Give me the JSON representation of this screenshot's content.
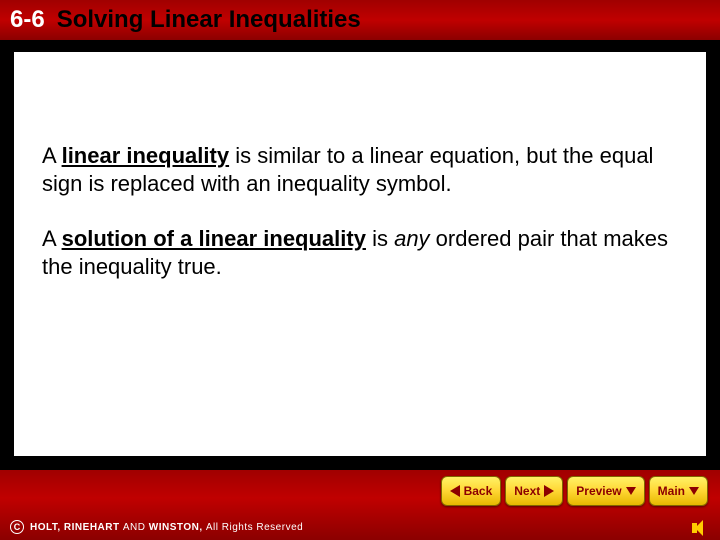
{
  "header": {
    "section_number": "6-6",
    "title": "Solving Linear Inequalities"
  },
  "content": {
    "para1_pre": "A ",
    "para1_term": "linear inequality",
    "para1_post": " is similar to a linear equation, but the equal sign is replaced with an inequality symbol.",
    "para2_pre": "A ",
    "para2_term": "solution of a linear inequality",
    "para2_post1": " is ",
    "para2_ital": "any",
    "para2_post2": " ordered pair that makes the inequality true."
  },
  "nav": {
    "back": "Back",
    "next": "Next",
    "preview": "Preview",
    "main": "Main"
  },
  "footer": {
    "publisher": "HOLT, RINEHART ",
    "and": "AND",
    "winston": " WINSTON, ",
    "rights": "All Rights Reserved"
  },
  "colors": {
    "red_dark": "#8b0000",
    "red_mid": "#c00000",
    "yellow": "#ffd633",
    "white": "#ffffff",
    "black": "#000000"
  }
}
